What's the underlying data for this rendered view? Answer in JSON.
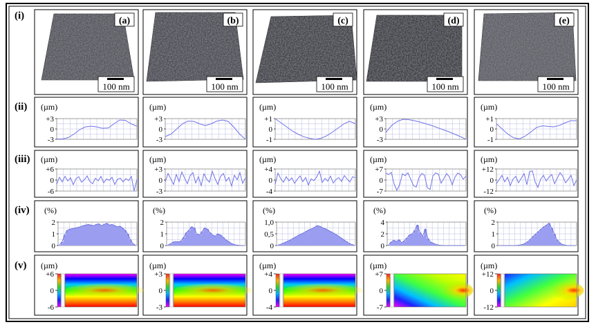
{
  "row_labels": [
    "(i)",
    "(ii)",
    "(iii)",
    "(iv)",
    "(v)"
  ],
  "panel_letters": [
    "(a)",
    "(b)",
    "(c)",
    "(d)",
    "(e)"
  ],
  "scale_bar": "100 nm",
  "unit_um": "(µm)",
  "unit_pct": "(%)",
  "colors": {
    "curve": "#6f72e6",
    "hist_fill": "#9b9ef0",
    "hist_stroke": "#5e61d8",
    "grid": "#b9bde0",
    "frame": "#000000"
  },
  "chart_data": [
    {
      "row": "(ii)",
      "type": "line",
      "panels": [
        {
          "panel": "(a)",
          "y_ticks": [
            "+3",
            "0",
            "-3"
          ],
          "ylim": [
            -3,
            3
          ],
          "values": [
            -2.9,
            -2.9,
            -2.5,
            -1.5,
            -0.2,
            0.6,
            0.8,
            0.6,
            0.2,
            0.3,
            1.5,
            2.6,
            2.5,
            1.5,
            0.8
          ]
        },
        {
          "panel": "(b)",
          "y_ticks": [
            "+3",
            "0",
            "-3"
          ],
          "ylim": [
            -3,
            3
          ],
          "values": [
            -2.2,
            -1.5,
            0.0,
            1.5,
            2.3,
            2.2,
            1.5,
            1.0,
            1.5,
            2.3,
            2.6,
            2.2,
            0.5,
            -1.5,
            -3.0
          ]
        },
        {
          "panel": "(c)",
          "y_ticks": [
            "+1",
            "0",
            "-1"
          ],
          "ylim": [
            -1,
            1
          ],
          "values": [
            1.0,
            0.6,
            0.2,
            -0.2,
            -0.5,
            -0.75,
            -0.9,
            -1.0,
            -0.9,
            -0.65,
            -0.3,
            0.1,
            0.5,
            0.75,
            0.5
          ]
        },
        {
          "panel": "(d)",
          "y_ticks": [
            "+3",
            "0",
            "-3"
          ],
          "ylim": [
            -3,
            3
          ],
          "values": [
            -1.0,
            1.0,
            2.2,
            2.8,
            2.7,
            2.4,
            2.0,
            1.5,
            1.0,
            0.4,
            -0.2,
            -0.8,
            -1.5,
            -2.2,
            -3.0
          ]
        },
        {
          "panel": "(e)",
          "y_ticks": [
            "+1",
            "0",
            "-1"
          ],
          "ylim": [
            -1,
            1
          ],
          "values": [
            0.5,
            0.0,
            -0.5,
            -0.85,
            -0.95,
            -0.7,
            -0.3,
            0.15,
            0.3,
            0.25,
            0.2,
            0.35,
            0.6,
            0.8,
            0.8
          ]
        }
      ]
    },
    {
      "row": "(iii)",
      "type": "line",
      "panels": [
        {
          "panel": "(a)",
          "y_ticks": [
            "+6",
            "0",
            "-6"
          ],
          "ylim": [
            -6,
            6
          ],
          "values": [
            -2.2,
            1.5,
            -1.0,
            2.0,
            -0.5,
            1.2,
            -2.5,
            0.8,
            1.8,
            -1.2,
            0.2,
            2.2,
            -0.8,
            -2.0,
            1.0,
            -0.4,
            2.0,
            -1.5,
            0.6,
            -0.2,
            1.5,
            -2.4,
            0.4,
            1.0,
            -1.0,
            0.8,
            -0.3,
            1.9,
            -6.0,
            0.5
          ]
        },
        {
          "panel": "(b)",
          "y_ticks": [
            "+3",
            "0",
            "-3"
          ],
          "ylim": [
            -3,
            3
          ],
          "values": [
            -0.5,
            1.8,
            0.3,
            -1.2,
            1.5,
            -0.4,
            2.2,
            0.5,
            -1.0,
            1.2,
            2.0,
            -0.8,
            0.9,
            -1.5,
            1.7,
            0.2,
            -0.6,
            2.4,
            0.4,
            -1.2,
            1.0,
            1.8,
            -0.3,
            0.7,
            -1.6,
            1.3,
            0.1,
            2.0,
            -0.9,
            0.6
          ]
        },
        {
          "panel": "(c)",
          "y_ticks": [
            "+4",
            "0",
            "-4"
          ],
          "ylim": [
            -4,
            4
          ],
          "values": [
            -1.5,
            2.5,
            0.5,
            -0.8,
            1.2,
            -0.3,
            0.8,
            -1.2,
            0.3,
            1.5,
            -0.6,
            0.9,
            -1.8,
            0.4,
            -0.2,
            1.1,
            3.2,
            -0.9,
            0.6,
            -0.4,
            1.4,
            -1.1,
            0.2,
            0.9,
            -0.5,
            1.6,
            0.4,
            -0.7,
            1.2,
            0.8
          ]
        },
        {
          "panel": "(d)",
          "y_ticks": [
            "+7",
            "0",
            "-7"
          ],
          "ylim": [
            -7,
            7
          ],
          "values": [
            4.5,
            3.5,
            4.8,
            -2.5,
            -6.5,
            -3.0,
            4.0,
            2.8,
            4.6,
            0.5,
            -3.5,
            -4.5,
            1.5,
            4.2,
            3.0,
            -4.8,
            -6.0,
            2.5,
            4.5,
            3.8,
            -2.0,
            1.0,
            4.0,
            2.0,
            -3.0,
            1.8,
            4.4,
            3.5,
            0.5,
            2.5
          ]
        },
        {
          "panel": "(e)",
          "y_ticks": [
            "+12",
            "0",
            "-12"
          ],
          "ylim": [
            -12,
            12
          ],
          "values": [
            -4.0,
            0.5,
            5.0,
            -2.0,
            3.0,
            -6.0,
            1.0,
            4.0,
            -3.0,
            2.0,
            7.0,
            -5.0,
            9.0,
            10.0,
            -2.0,
            -8.0,
            1.0,
            5.0,
            -1.0,
            3.0,
            6.0,
            -4.0,
            2.0,
            8.0,
            4.0,
            -3.0,
            1.0,
            5.0,
            -6.0,
            0.0
          ]
        }
      ]
    },
    {
      "row": "(iv)",
      "type": "bar",
      "panels": [
        {
          "panel": "(a)",
          "y_ticks": [
            "2",
            "1",
            "0"
          ],
          "ylim": [
            0,
            2
          ],
          "values": [
            0.05,
            0.3,
            0.9,
            1.3,
            1.4,
            1.45,
            1.5,
            1.55,
            1.6,
            1.7,
            1.75,
            1.8,
            1.75,
            1.7,
            1.8,
            1.85,
            1.7,
            1.8,
            1.9,
            1.75,
            1.8,
            1.7,
            1.6,
            1.65,
            1.5,
            1.3,
            1.0,
            0.5,
            0.15,
            0.02
          ]
        },
        {
          "panel": "(b)",
          "y_ticks": [
            "2",
            "1",
            "0"
          ],
          "ylim": [
            0,
            2
          ],
          "values": [
            0.05,
            0.15,
            0.3,
            0.35,
            0.3,
            0.4,
            0.7,
            1.1,
            1.3,
            1.6,
            1.5,
            1.0,
            0.9,
            1.2,
            1.5,
            1.4,
            1.1,
            0.9,
            0.8,
            1.0,
            0.9,
            0.7,
            0.5,
            0.35,
            0.2,
            0.1,
            0.05,
            0.02,
            0.0,
            0.0
          ]
        },
        {
          "panel": "(c)",
          "y_ticks": [
            "1,0",
            "0,5",
            "0"
          ],
          "ylim": [
            0,
            1
          ],
          "values": [
            0.02,
            0.05,
            0.1,
            0.15,
            0.2,
            0.25,
            0.32,
            0.38,
            0.45,
            0.5,
            0.55,
            0.62,
            0.68,
            0.72,
            0.78,
            0.85,
            0.82,
            0.76,
            0.72,
            0.66,
            0.6,
            0.54,
            0.48,
            0.4,
            0.33,
            0.25,
            0.18,
            0.1,
            0.05,
            0.02
          ]
        },
        {
          "panel": "(d)",
          "y_ticks": [
            "4",
            "2",
            "0"
          ],
          "ylim": [
            0,
            4
          ],
          "values": [
            0.1,
            0.6,
            0.9,
            0.7,
            1.0,
            0.5,
            0.8,
            1.3,
            1.8,
            2.0,
            2.6,
            3.5,
            2.2,
            1.6,
            2.8,
            1.2,
            0.6,
            0.4,
            0.2,
            0.1,
            0.05,
            0.0,
            0.0,
            0.0,
            0.0,
            0.0,
            0.0,
            0.0,
            0.0,
            0.0
          ]
        },
        {
          "panel": "(e)",
          "y_ticks": [
            "2",
            "1",
            "0"
          ],
          "ylim": [
            0,
            2
          ],
          "values": [
            0.0,
            0.0,
            0.0,
            0.0,
            0.0,
            0.0,
            0.0,
            0.02,
            0.05,
            0.1,
            0.2,
            0.35,
            0.55,
            0.8,
            1.0,
            1.2,
            1.4,
            1.6,
            1.75,
            1.9,
            1.5,
            1.0,
            0.5,
            0.25,
            0.1,
            0.04,
            0.0,
            0.0,
            0.0,
            0.0
          ]
        }
      ]
    },
    {
      "row": "(v)",
      "type": "heatmap",
      "panels": [
        {
          "panel": "(a)",
          "y_ticks": [
            "+6",
            "0",
            "-6"
          ],
          "ylim": [
            -6,
            6
          ]
        },
        {
          "panel": "(b)",
          "y_ticks": [
            "+3",
            "0",
            "-3"
          ],
          "ylim": [
            -3,
            3
          ]
        },
        {
          "panel": "(c)",
          "y_ticks": [
            "+4",
            "0",
            "-4"
          ],
          "ylim": [
            -4,
            4
          ]
        },
        {
          "panel": "(d)",
          "y_ticks": [
            "+7",
            "0",
            "-7"
          ],
          "ylim": [
            -7,
            7
          ]
        },
        {
          "panel": "(e)",
          "y_ticks": [
            "+12",
            "0",
            "-12"
          ],
          "ylim": [
            -12,
            12
          ]
        }
      ]
    }
  ]
}
